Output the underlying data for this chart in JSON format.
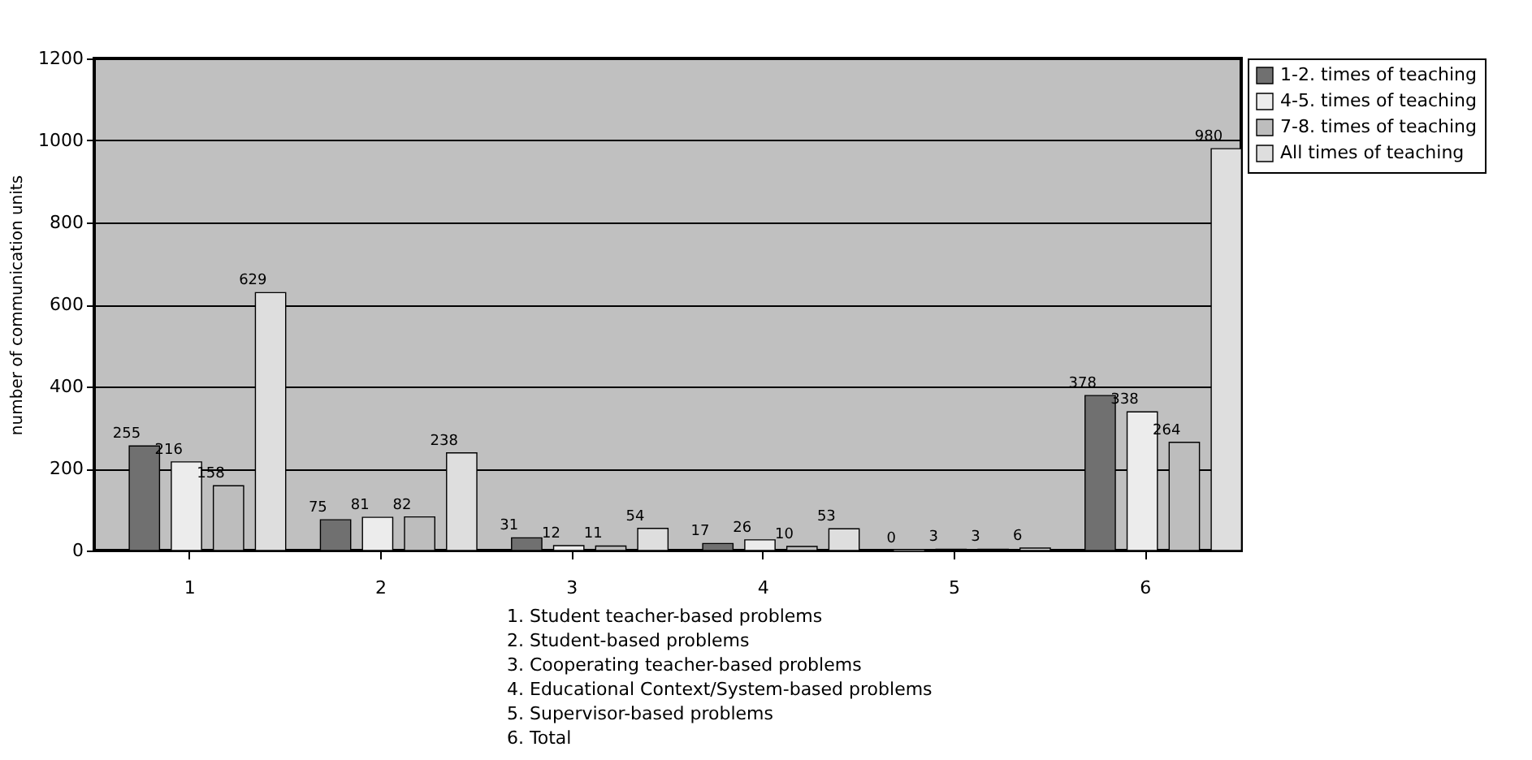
{
  "chart_data": {
    "type": "bar",
    "ylabel": "number of communication units",
    "categories": [
      "1",
      "2",
      "3",
      "4",
      "5",
      "6"
    ],
    "series": [
      {
        "name": "1-2. times of teaching",
        "color": "#707070",
        "values": [
          255,
          75,
          31,
          17,
          0,
          378
        ]
      },
      {
        "name": "4-5. times of teaching",
        "color": "#ececec",
        "values": [
          216,
          81,
          12,
          26,
          3,
          338
        ]
      },
      {
        "name": "7-8. times of teaching",
        "color": "#bdbdbd",
        "values": [
          158,
          82,
          11,
          10,
          3,
          264
        ]
      },
      {
        "name": "All times of teaching",
        "color": "#dedede",
        "values": [
          629,
          238,
          54,
          53,
          6,
          980
        ]
      }
    ],
    "ylim": [
      0,
      1200
    ],
    "yticks": [
      0,
      200,
      400,
      600,
      800,
      1000,
      1200
    ],
    "grid": "y",
    "legend": "right",
    "data_labels": true,
    "annotations": [
      "1. Student teacher-based problems",
      "2. Student-based problems",
      "3. Cooperating teacher-based problems",
      "4. Educational Context/System-based problems",
      "5. Supervisor-based problems",
      "6. Total"
    ]
  }
}
